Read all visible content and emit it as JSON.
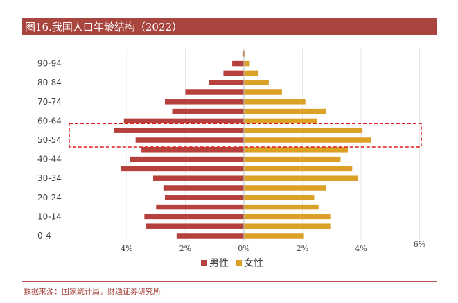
{
  "title": "图16.我国人口年龄结构（2022）",
  "source": "数据来源：国家统计局，财通证券研究所",
  "colors": {
    "male": "#b5403c",
    "female": "#dba026",
    "highlight": "#e31a1c",
    "title_bg": "#a8453f"
  },
  "chart_data": {
    "type": "bar",
    "orientation": "horizontal-population-pyramid",
    "categories": [
      "0-4",
      "5-9",
      "10-14",
      "15-19",
      "20-24",
      "25-29",
      "30-34",
      "35-39",
      "40-44",
      "45-49",
      "50-54",
      "55-59",
      "60-64",
      "65-69",
      "70-74",
      "75-79",
      "80-84",
      "85-89",
      "90-94",
      "95+"
    ],
    "tick_labels": [
      "0-4",
      "10-14",
      "20-24",
      "30-34",
      "40-44",
      "50-54",
      "60-64",
      "70-74",
      "80-84",
      "90-94"
    ],
    "series": [
      {
        "name": "男性",
        "side": "left",
        "values": [
          2.3,
          3.35,
          3.4,
          3.0,
          2.7,
          2.75,
          3.1,
          4.2,
          3.9,
          3.5,
          3.7,
          4.45,
          4.1,
          2.45,
          2.7,
          2.0,
          1.2,
          0.7,
          0.4,
          0.05
        ]
      },
      {
        "name": "女性",
        "side": "right",
        "values": [
          2.05,
          2.95,
          2.95,
          2.55,
          2.4,
          2.8,
          3.9,
          3.7,
          3.3,
          3.55,
          4.35,
          4.05,
          2.5,
          2.8,
          2.1,
          1.3,
          0.85,
          0.5,
          0.2,
          0.05
        ]
      }
    ],
    "x_ticks": [
      {
        "value": -4,
        "label": "4%"
      },
      {
        "value": -2,
        "label": "2%"
      },
      {
        "value": 0,
        "label": "0%"
      },
      {
        "value": 2,
        "label": "2%"
      },
      {
        "value": 4,
        "label": "4%"
      },
      {
        "value": 6,
        "label": "6%"
      }
    ],
    "xlim": [
      -6,
      6
    ],
    "highlighted_categories": [
      "50-54",
      "55-59"
    ],
    "legend_position": "bottom",
    "grid": true
  }
}
